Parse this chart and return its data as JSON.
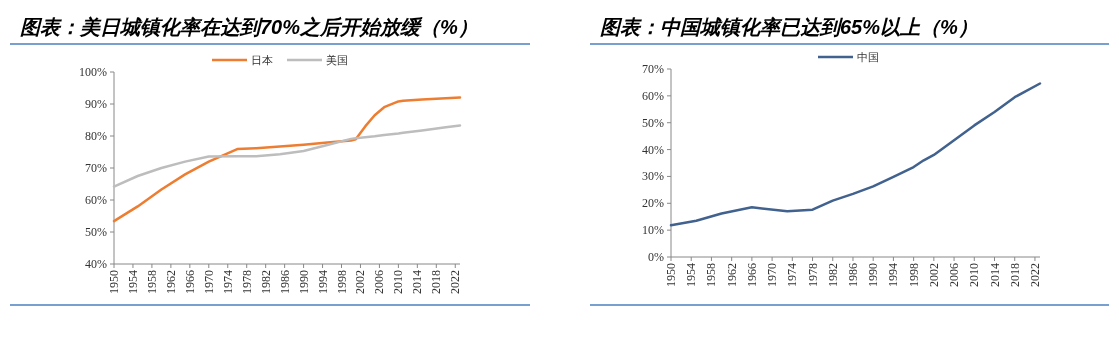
{
  "chart_data": [
    {
      "type": "line",
      "title": "图表：美日城镇化率在达到70%之后开始放缓（%）",
      "x": [
        1950,
        1955,
        1960,
        1965,
        1970,
        1976,
        1980,
        1985,
        1990,
        1995,
        2000,
        2001,
        2003,
        2005,
        2007,
        2010,
        2011,
        2015,
        2020,
        2023
      ],
      "xlim": [
        1950,
        2023
      ],
      "xticks": [
        1950,
        1954,
        1958,
        1962,
        1966,
        1970,
        1974,
        1978,
        1982,
        1986,
        1990,
        1994,
        1998,
        2002,
        2006,
        2010,
        2014,
        2018,
        2022
      ],
      "ylim": [
        40,
        100
      ],
      "yticks": [
        {
          "value": 40,
          "label": "40%"
        },
        {
          "value": 50,
          "label": "50%"
        },
        {
          "value": 60,
          "label": "60%"
        },
        {
          "value": 70,
          "label": "70%"
        },
        {
          "value": 80,
          "label": "80%"
        },
        {
          "value": 90,
          "label": "90%"
        },
        {
          "value": 100,
          "label": "100%"
        }
      ],
      "legend": "top",
      "grid": false,
      "series": [
        {
          "name": "日本",
          "color": "#ed7d31",
          "values": [
            53.4,
            58,
            63.3,
            68,
            72,
            75.9,
            76.2,
            76.7,
            77.3,
            78,
            78.6,
            79,
            83,
            86.5,
            89,
            90.8,
            91,
            91.4,
            91.8,
            92
          ]
        },
        {
          "name": "美国",
          "color": "#bdbdbd",
          "values": [
            64.2,
            67.5,
            70,
            72,
            73.6,
            73.7,
            73.7,
            74.3,
            75.3,
            77.2,
            79.1,
            79.3,
            79.6,
            79.9,
            80.3,
            80.8,
            81,
            81.7,
            82.7,
            83.3
          ]
        }
      ]
    },
    {
      "type": "line",
      "title": "图表：中国城镇化率已达到65%以上（%）",
      "x": [
        1950,
        1955,
        1960,
        1966,
        1973,
        1978,
        1982,
        1986,
        1990,
        1994,
        1998,
        2000,
        2002,
        2006,
        2010,
        2014,
        2018,
        2023
      ],
      "xlim": [
        1950,
        2023
      ],
      "xticks": [
        1950,
        1954,
        1958,
        1962,
        1966,
        1970,
        1974,
        1978,
        1982,
        1986,
        1990,
        1994,
        1998,
        2002,
        2006,
        2010,
        2014,
        2018,
        2022
      ],
      "ylim": [
        0,
        70
      ],
      "yticks": [
        {
          "value": 0,
          "label": "0%"
        },
        {
          "value": 10,
          "label": "10%"
        },
        {
          "value": 20,
          "label": "20%"
        },
        {
          "value": 30,
          "label": "30%"
        },
        {
          "value": 40,
          "label": "40%"
        },
        {
          "value": 50,
          "label": "50%"
        },
        {
          "value": 60,
          "label": "60%"
        },
        {
          "value": 70,
          "label": "70%"
        }
      ],
      "legend": "top",
      "grid": false,
      "series": [
        {
          "name": "中国",
          "color": "#41618e",
          "values": [
            11.8,
            13.5,
            16.2,
            18.5,
            17,
            17.6,
            21,
            23.5,
            26.3,
            29.8,
            33.5,
            36,
            38,
            43.5,
            49,
            54,
            59.5,
            64.6
          ]
        }
      ]
    }
  ]
}
